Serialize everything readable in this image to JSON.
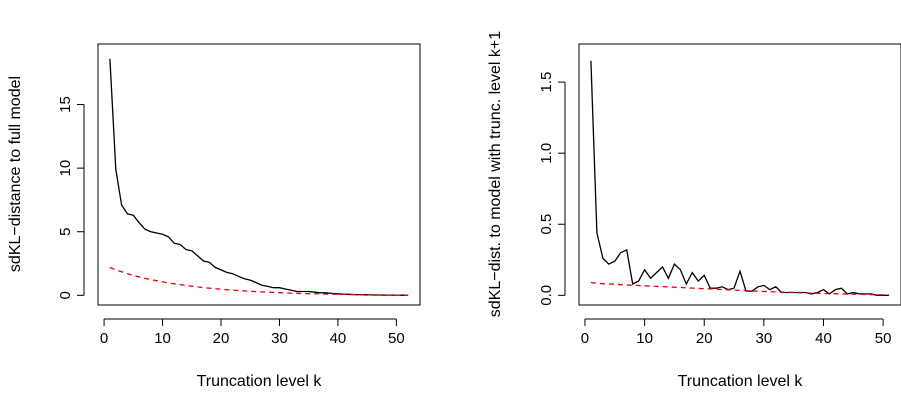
{
  "chart_data": [
    {
      "type": "line",
      "xlabel": "Truncation level k",
      "ylabel": "sdKL−distance to full model",
      "xlim": [
        1,
        52
      ],
      "ylim": [
        0,
        19
      ],
      "x_ticks": [
        0,
        10,
        20,
        30,
        40,
        50
      ],
      "y_ticks": [
        0,
        5,
        10,
        15
      ],
      "grid": false,
      "x": [
        1,
        2,
        3,
        4,
        5,
        6,
        7,
        8,
        9,
        10,
        11,
        12,
        13,
        14,
        15,
        16,
        17,
        18,
        19,
        20,
        21,
        22,
        23,
        24,
        25,
        26,
        27,
        28,
        29,
        30,
        31,
        32,
        33,
        34,
        35,
        36,
        37,
        38,
        39,
        40,
        41,
        42,
        43,
        44,
        45,
        46,
        47,
        48,
        49,
        50,
        51,
        52
      ],
      "series": [
        {
          "style": "solid",
          "color": "#000000",
          "values": [
            18.6,
            9.9,
            7.1,
            6.4,
            6.3,
            5.7,
            5.2,
            5.0,
            4.9,
            4.8,
            4.6,
            4.1,
            4.0,
            3.6,
            3.5,
            3.1,
            2.7,
            2.6,
            2.2,
            2.0,
            1.8,
            1.7,
            1.5,
            1.3,
            1.2,
            1.0,
            0.8,
            0.7,
            0.6,
            0.6,
            0.5,
            0.4,
            0.3,
            0.3,
            0.3,
            0.25,
            0.2,
            0.2,
            0.15,
            0.12,
            0.1,
            0.08,
            0.06,
            0.05,
            0.04,
            0.03,
            0.03,
            0.02,
            0.02,
            0.02,
            0.01,
            0.01
          ]
        },
        {
          "style": "dashed",
          "color": "#e8000b",
          "values": [
            2.2,
            2.0,
            1.85,
            1.7,
            1.57,
            1.45,
            1.34,
            1.24,
            1.15,
            1.06,
            0.98,
            0.91,
            0.84,
            0.78,
            0.72,
            0.66,
            0.61,
            0.56,
            0.52,
            0.48,
            0.44,
            0.41,
            0.38,
            0.35,
            0.32,
            0.29,
            0.27,
            0.25,
            0.23,
            0.21,
            0.19,
            0.17,
            0.16,
            0.14,
            0.13,
            0.12,
            0.11,
            0.1,
            0.09,
            0.08,
            0.07,
            0.06,
            0.05,
            0.05,
            0.04,
            0.04,
            0.03,
            0.03,
            0.02,
            0.02,
            0.02,
            0.01
          ]
        }
      ]
    },
    {
      "type": "line",
      "xlabel": "Truncation level k",
      "ylabel": "sdKL−dist. to model with trunc. level k+1",
      "xlim": [
        1,
        51
      ],
      "ylim": [
        0,
        1.7
      ],
      "x_ticks": [
        0,
        10,
        20,
        30,
        40,
        50
      ],
      "y_ticks": [
        0.0,
        0.5,
        1.0,
        1.5
      ],
      "y_tick_labels": [
        "0.0",
        "0.5",
        "1.0",
        "1.5"
      ],
      "grid": false,
      "x": [
        1,
        2,
        3,
        4,
        5,
        6,
        7,
        8,
        9,
        10,
        11,
        12,
        13,
        14,
        15,
        16,
        17,
        18,
        19,
        20,
        21,
        22,
        23,
        24,
        25,
        26,
        27,
        28,
        29,
        30,
        31,
        32,
        33,
        34,
        35,
        36,
        37,
        38,
        39,
        40,
        41,
        42,
        43,
        44,
        45,
        46,
        47,
        48,
        49,
        50,
        51
      ],
      "series": [
        {
          "style": "solid",
          "color": "#000000",
          "values": [
            1.65,
            0.44,
            0.26,
            0.22,
            0.24,
            0.3,
            0.32,
            0.08,
            0.1,
            0.18,
            0.12,
            0.16,
            0.2,
            0.12,
            0.22,
            0.18,
            0.08,
            0.16,
            0.1,
            0.14,
            0.05,
            0.05,
            0.06,
            0.04,
            0.05,
            0.17,
            0.03,
            0.03,
            0.06,
            0.07,
            0.04,
            0.06,
            0.02,
            0.02,
            0.02,
            0.02,
            0.02,
            0.01,
            0.02,
            0.04,
            0.01,
            0.04,
            0.05,
            0.01,
            0.02,
            0.01,
            0.01,
            0.01,
            0.0,
            0.0,
            0.0
          ]
        },
        {
          "style": "dashed",
          "color": "#e8000b",
          "values": [
            0.09,
            0.085,
            0.082,
            0.08,
            0.078,
            0.075,
            0.073,
            0.071,
            0.069,
            0.067,
            0.065,
            0.063,
            0.061,
            0.059,
            0.057,
            0.055,
            0.053,
            0.051,
            0.049,
            0.047,
            0.045,
            0.043,
            0.041,
            0.039,
            0.037,
            0.035,
            0.033,
            0.031,
            0.029,
            0.027,
            0.026,
            0.024,
            0.023,
            0.021,
            0.02,
            0.018,
            0.017,
            0.016,
            0.015,
            0.013,
            0.012,
            0.011,
            0.01,
            0.009,
            0.008,
            0.007,
            0.006,
            0.005,
            0.004,
            0.003,
            0.002
          ]
        }
      ]
    }
  ]
}
